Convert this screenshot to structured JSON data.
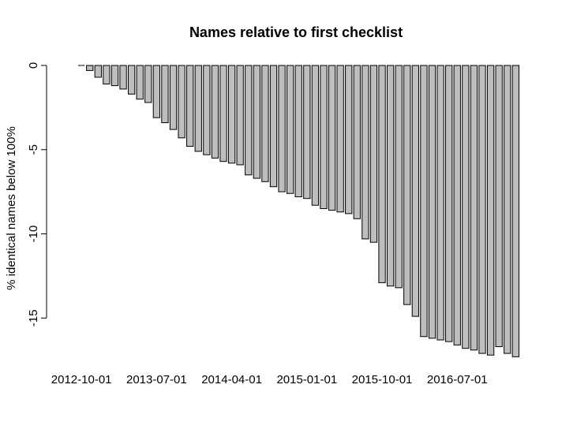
{
  "chart_data": {
    "type": "bar",
    "title": "Names relative to first checklist",
    "xlabel": "",
    "ylabel": "% identical names below 100%",
    "ylim": [
      -17.3,
      0
    ],
    "yticks": [
      0,
      -5,
      -10,
      -15
    ],
    "x_tick_labels": [
      {
        "label": "2012-10-01",
        "index": 0
      },
      {
        "label": "2013-07-01",
        "index": 9
      },
      {
        "label": "2014-04-01",
        "index": 18
      },
      {
        "label": "2015-01-01",
        "index": 27
      },
      {
        "label": "2015-10-01",
        "index": 36
      },
      {
        "label": "2016-07-01",
        "index": 45
      }
    ],
    "values": [
      0,
      -0.3,
      -0.7,
      -1.1,
      -1.2,
      -1.4,
      -1.7,
      -2.0,
      -2.2,
      -3.1,
      -3.4,
      -3.8,
      -4.3,
      -4.8,
      -5.1,
      -5.3,
      -5.5,
      -5.7,
      -5.8,
      -5.9,
      -6.5,
      -6.7,
      -6.9,
      -7.2,
      -7.5,
      -7.6,
      -7.8,
      -7.9,
      -8.3,
      -8.5,
      -8.6,
      -8.7,
      -8.8,
      -9.1,
      -10.3,
      -10.5,
      -12.9,
      -13.1,
      -13.2,
      -14.2,
      -14.9,
      -16.1,
      -16.2,
      -16.3,
      -16.4,
      -16.6,
      -16.8,
      -16.9,
      -17.1,
      -17.2,
      -16.7,
      -17.1,
      -17.3
    ],
    "bar_fill": "#bebebe",
    "bar_stroke": "#000000",
    "grid": false,
    "legend": "none"
  }
}
